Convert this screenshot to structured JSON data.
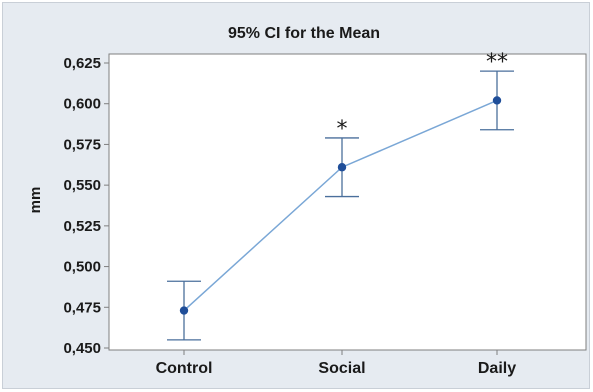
{
  "chart_data": {
    "type": "line",
    "title": "95% CI for the Mean",
    "xlabel": "",
    "ylabel": "mm",
    "categories": [
      "Control",
      "Social",
      "Daily"
    ],
    "ylim": [
      0.45,
      0.625
    ],
    "yticks": [
      0.45,
      0.475,
      0.5,
      0.525,
      0.55,
      0.575,
      0.6,
      0.625
    ],
    "ytick_labels": [
      "0,450",
      "0,475",
      "0,500",
      "0,525",
      "0,550",
      "0,575",
      "0,600",
      "0,625"
    ],
    "series": [
      {
        "values": [
          0.473,
          0.561,
          0.602
        ],
        "ci_low": [
          0.455,
          0.543,
          0.584
        ],
        "ci_high": [
          0.491,
          0.579,
          0.62
        ]
      }
    ],
    "annotations": [
      "",
      "*",
      "**"
    ],
    "grid": false,
    "colors": {
      "line": "#7aa7d6",
      "marker": "#1f4e99",
      "errorbar": "#4a6f9c",
      "plot_bg": "#ffffff",
      "frame_bg": "#e6ebf1"
    }
  }
}
